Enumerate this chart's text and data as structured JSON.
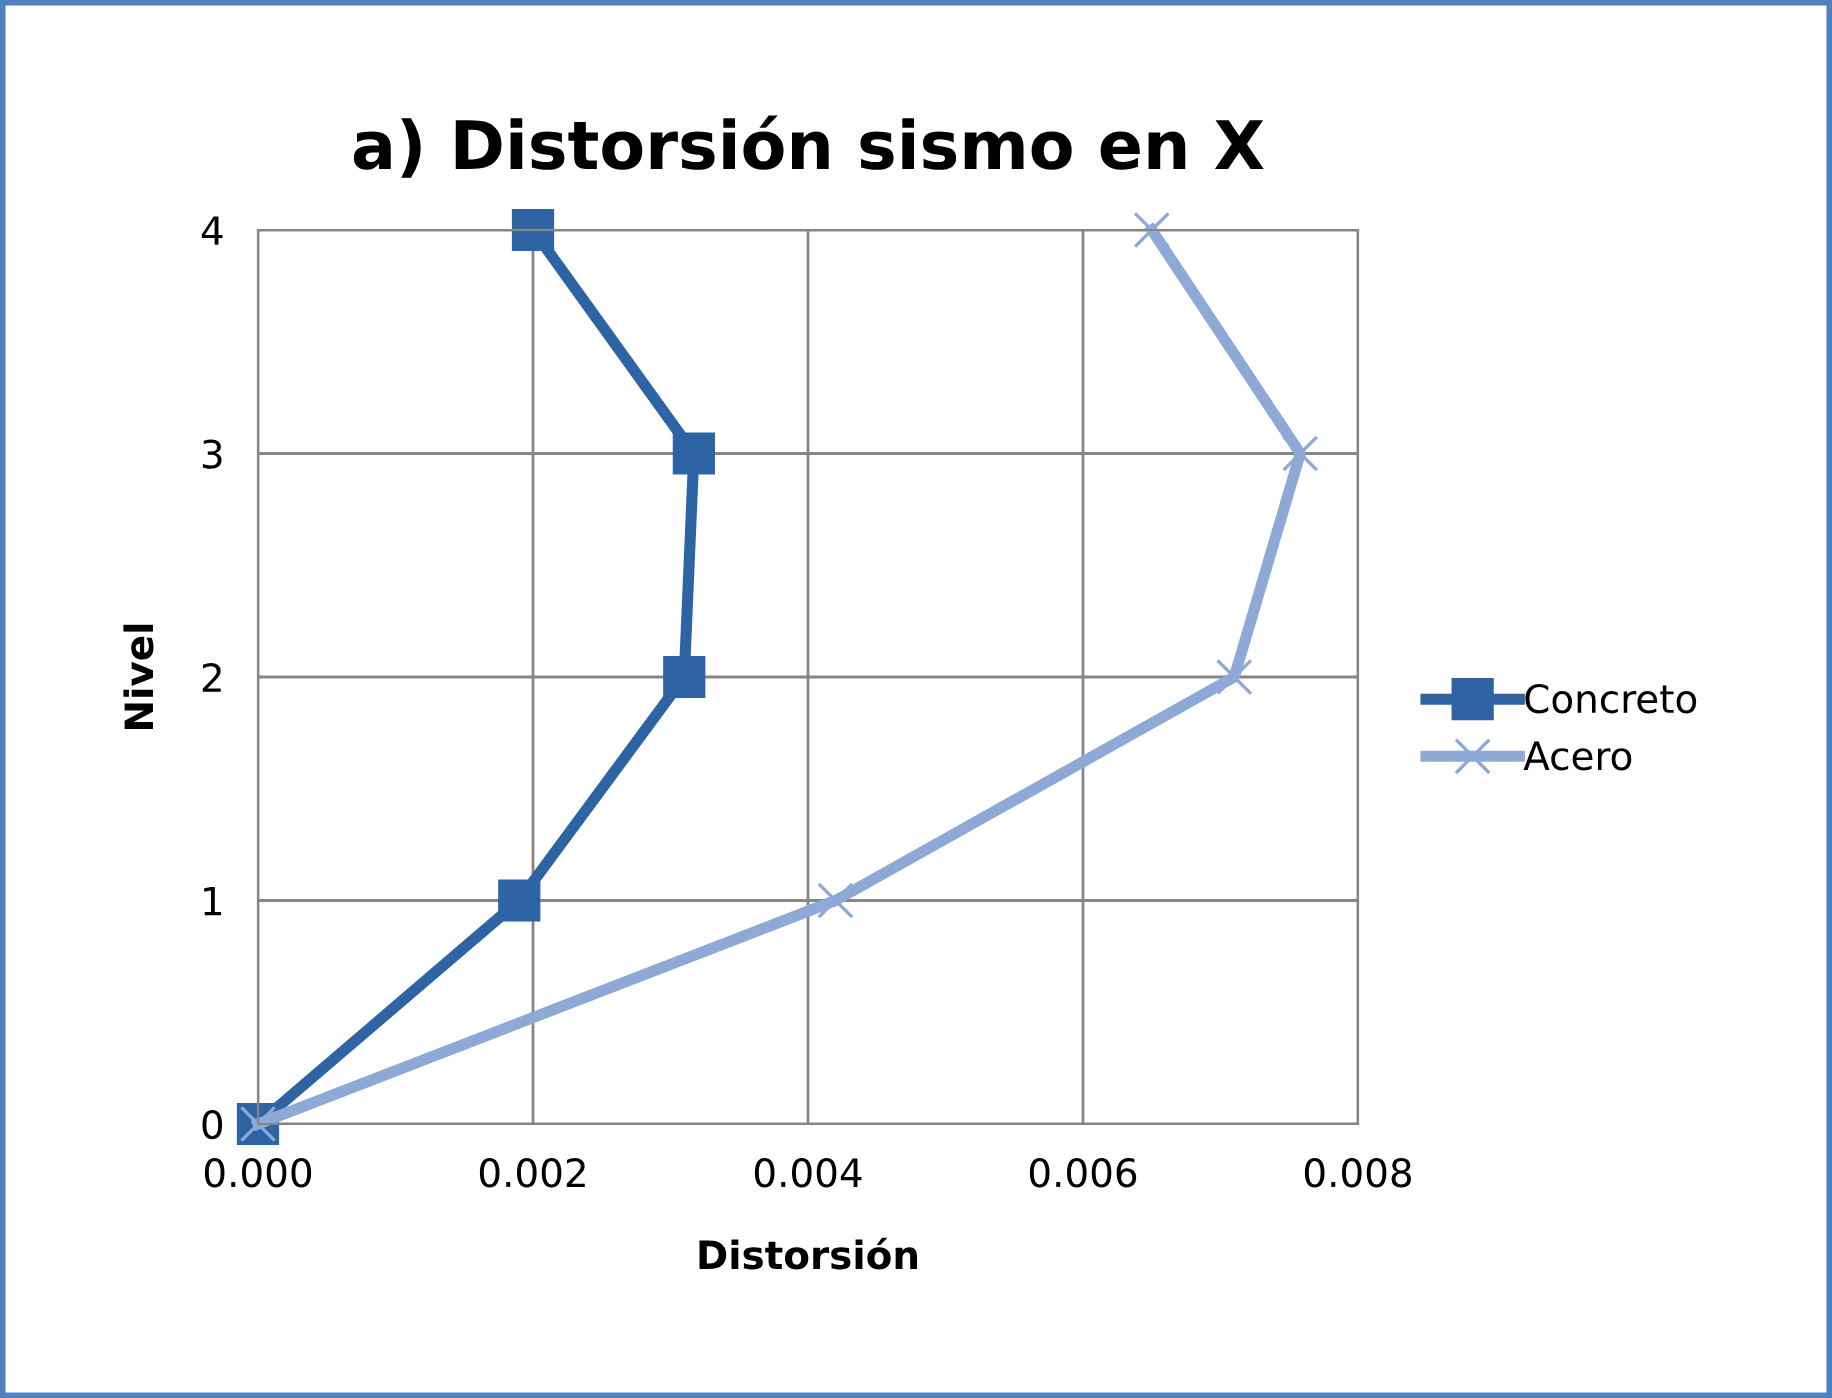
{
  "chart_data": {
    "type": "line",
    "title": "a) Distorsión sismo en X",
    "xlabel": "Distorsión",
    "ylabel": "Nivel",
    "series": [
      {
        "name": "Concreto",
        "color": "#2e64a4",
        "marker": "square",
        "x": [
          0,
          0.0019,
          0.0031,
          0.00317,
          0.002
        ],
        "values": [
          0,
          1,
          2,
          3,
          4
        ]
      },
      {
        "name": "Acero",
        "color": "#8ea9d6",
        "marker": "cross",
        "x": [
          0,
          0.0042,
          0.0071,
          0.00758,
          0.0065
        ],
        "values": [
          0,
          1,
          2,
          3,
          4
        ]
      }
    ],
    "xlim": [
      0,
      0.008
    ],
    "xticks": [
      {
        "value": 0,
        "label": "0.000"
      },
      {
        "value": 0.002,
        "label": "0.002"
      },
      {
        "value": 0.004,
        "label": "0.004"
      },
      {
        "value": 0.006,
        "label": "0.006"
      },
      {
        "value": 0.008,
        "label": "0.008"
      }
    ],
    "ylim": [
      0,
      4
    ],
    "yticks": [
      0,
      1,
      2,
      3,
      4
    ],
    "grid": true,
    "legend": "right"
  }
}
